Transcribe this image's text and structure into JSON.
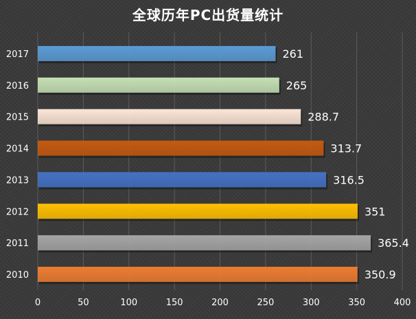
{
  "chart_data": {
    "type": "bar",
    "orientation": "horizontal",
    "title": "全球历年PC出货量统计",
    "xlabel": "",
    "ylabel": "",
    "categories": [
      "2017",
      "2016",
      "2015",
      "2014",
      "2013",
      "2012",
      "2011",
      "2010"
    ],
    "values": [
      261,
      265,
      288.7,
      313.7,
      316.5,
      351,
      365.4,
      350.9
    ],
    "value_labels": [
      "261",
      "265",
      "288.7",
      "313.7",
      "316.5",
      "351",
      "365.4",
      "350.9"
    ],
    "colors": [
      "#5b9bd5",
      "#c5e0b4",
      "#fbe5d6",
      "#c55a11",
      "#4472c4",
      "#ffc000",
      "#a5a5a5",
      "#ed7d31"
    ],
    "xlim": [
      0,
      400
    ],
    "xticks": [
      "0",
      "50",
      "100",
      "150",
      "200",
      "250",
      "300",
      "350",
      "400"
    ],
    "grid": true,
    "legend": "none"
  },
  "colors": {
    "background": "#3a3a3a",
    "gridline": "#5c5c5c",
    "text": "#ffffff"
  }
}
